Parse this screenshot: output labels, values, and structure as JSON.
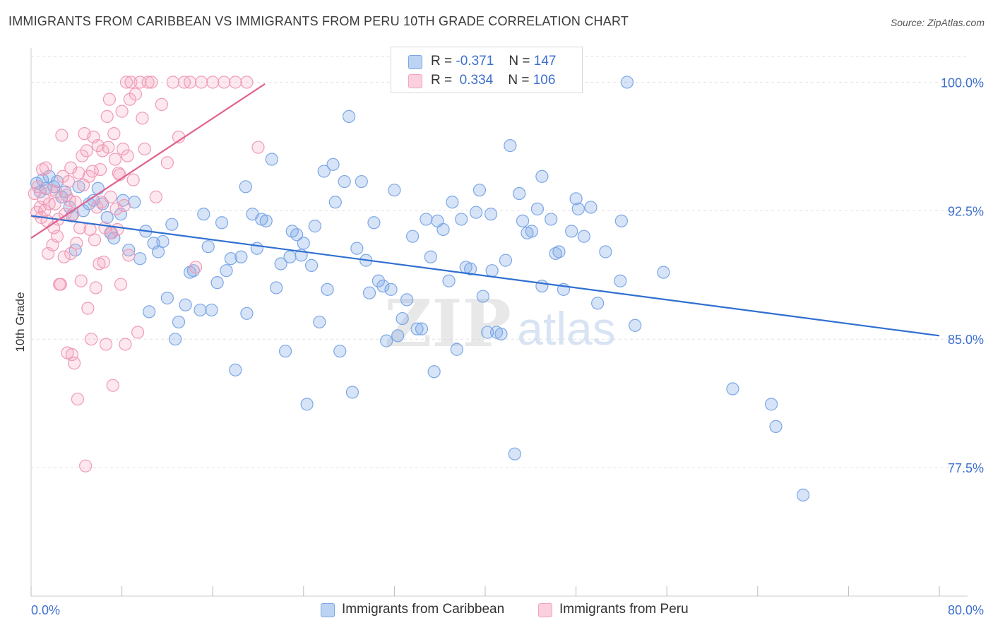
{
  "header": {
    "title": "IMMIGRANTS FROM CARIBBEAN VS IMMIGRANTS FROM PERU 10TH GRADE CORRELATION CHART",
    "source": "Source: ZipAtlas.com"
  },
  "legend": {
    "r_label": "R =",
    "n_label": "N =",
    "rows": [
      {
        "r": "-0.371",
        "n": "147"
      },
      {
        "r": "0.334",
        "n": "106"
      }
    ]
  },
  "watermark": {
    "zip": "ZIP",
    "atlas": "atlas"
  },
  "chart_data": {
    "type": "scatter",
    "title": "IMMIGRANTS FROM CARIBBEAN VS IMMIGRANTS FROM PERU 10TH GRADE CORRELATION CHART",
    "ylabel": "10th Grade",
    "xlabel": "",
    "x_ticks": [
      "0.0%",
      "80.0%"
    ],
    "y_ticks": [
      {
        "value": 100.0,
        "label": "100.0%"
      },
      {
        "value": 92.5,
        "label": "92.5%"
      },
      {
        "value": 85.0,
        "label": "85.0%"
      },
      {
        "value": 77.5,
        "label": "77.5%"
      }
    ],
    "xlim": [
      0,
      80
    ],
    "ylim": [
      70.0,
      101.5
    ],
    "grid": true,
    "legend_position": "bottom",
    "colors": {
      "caribbean": "#7ba7e6",
      "peru": "#f4a3bd",
      "caribbean_line": "#2f6fd1",
      "peru_line": "#e0628f",
      "axis_label": "#3d6fcf"
    },
    "series": [
      {
        "name": "Immigrants from Caribbean",
        "trend": {
          "x": [
            0,
            80
          ],
          "y": [
            92.2,
            85.2
          ]
        },
        "points": [
          [
            0.5,
            94.1
          ],
          [
            0.8,
            93.6
          ],
          [
            1.0,
            94.3
          ],
          [
            1.3,
            93.8
          ],
          [
            1.6,
            94.5
          ],
          [
            2.0,
            93.9
          ],
          [
            2.3,
            94.2
          ],
          [
            2.7,
            93.3
          ],
          [
            3.0,
            93.6
          ],
          [
            3.4,
            92.7
          ],
          [
            3.6,
            92.2
          ],
          [
            3.9,
            90.2
          ],
          [
            4.2,
            93.9
          ],
          [
            4.6,
            92.5
          ],
          [
            5.1,
            92.9
          ],
          [
            5.5,
            93.1
          ],
          [
            5.9,
            93.8
          ],
          [
            6.3,
            92.9
          ],
          [
            6.7,
            92.1
          ],
          [
            7.0,
            91.2
          ],
          [
            7.3,
            90.9
          ],
          [
            7.9,
            92.3
          ],
          [
            8.1,
            93.1
          ],
          [
            8.6,
            90.2
          ],
          [
            9.1,
            93.0
          ],
          [
            9.6,
            89.7
          ],
          [
            10.1,
            91.3
          ],
          [
            10.4,
            86.6
          ],
          [
            10.8,
            90.6
          ],
          [
            11.2,
            90.1
          ],
          [
            11.6,
            90.7
          ],
          [
            12.0,
            87.4
          ],
          [
            12.4,
            91.7
          ],
          [
            12.7,
            85.0
          ],
          [
            13.0,
            86.0
          ],
          [
            13.6,
            87.0
          ],
          [
            14.0,
            88.9
          ],
          [
            14.3,
            89.0
          ],
          [
            14.9,
            86.7
          ],
          [
            15.2,
            92.3
          ],
          [
            15.6,
            90.4
          ],
          [
            15.9,
            86.7
          ],
          [
            16.4,
            88.3
          ],
          [
            16.8,
            91.8
          ],
          [
            17.2,
            89.0
          ],
          [
            17.6,
            89.7
          ],
          [
            18.0,
            83.2
          ],
          [
            18.5,
            89.8
          ],
          [
            18.9,
            93.9
          ],
          [
            19.0,
            86.5
          ],
          [
            19.5,
            92.3
          ],
          [
            19.9,
            90.3
          ],
          [
            20.3,
            92.0
          ],
          [
            20.7,
            91.9
          ],
          [
            21.2,
            95.5
          ],
          [
            21.6,
            88.0
          ],
          [
            22.0,
            89.4
          ],
          [
            22.4,
            84.3
          ],
          [
            22.8,
            89.8
          ],
          [
            23.0,
            91.3
          ],
          [
            23.4,
            91.1
          ],
          [
            23.8,
            89.9
          ],
          [
            24.0,
            90.6
          ],
          [
            24.3,
            81.2
          ],
          [
            24.7,
            89.3
          ],
          [
            25.0,
            91.6
          ],
          [
            25.4,
            86.0
          ],
          [
            25.8,
            94.8
          ],
          [
            26.1,
            87.9
          ],
          [
            26.6,
            95.2
          ],
          [
            26.8,
            93.0
          ],
          [
            27.2,
            84.3
          ],
          [
            27.6,
            94.2
          ],
          [
            28.0,
            98.0
          ],
          [
            28.3,
            81.9
          ],
          [
            28.7,
            90.3
          ],
          [
            29.1,
            94.2
          ],
          [
            29.5,
            89.6
          ],
          [
            29.8,
            87.7
          ],
          [
            30.2,
            91.8
          ],
          [
            30.6,
            88.4
          ],
          [
            31.0,
            88.1
          ],
          [
            31.3,
            84.9
          ],
          [
            31.7,
            87.9
          ],
          [
            32.0,
            93.7
          ],
          [
            32.3,
            85.2
          ],
          [
            32.7,
            86.2
          ],
          [
            33.1,
            87.3
          ],
          [
            33.6,
            91.0
          ],
          [
            34.0,
            85.6
          ],
          [
            34.4,
            85.6
          ],
          [
            34.8,
            92.0
          ],
          [
            35.2,
            89.8
          ],
          [
            35.5,
            83.1
          ],
          [
            35.8,
            91.9
          ],
          [
            36.3,
            91.4
          ],
          [
            36.8,
            88.4
          ],
          [
            37.1,
            93.0
          ],
          [
            37.5,
            84.4
          ],
          [
            37.9,
            92.0
          ],
          [
            38.3,
            89.2
          ],
          [
            38.7,
            89.1
          ],
          [
            39.2,
            92.4
          ],
          [
            39.5,
            93.7
          ],
          [
            39.8,
            87.5
          ],
          [
            40.2,
            85.4
          ],
          [
            40.6,
            89.0
          ],
          [
            41.0,
            85.4
          ],
          [
            41.4,
            85.3
          ],
          [
            41.8,
            89.6
          ],
          [
            42.2,
            96.3
          ],
          [
            42.6,
            78.3
          ],
          [
            43.0,
            93.5
          ],
          [
            43.3,
            91.9
          ],
          [
            43.7,
            91.2
          ],
          [
            44.1,
            91.3
          ],
          [
            44.6,
            92.6
          ],
          [
            45.0,
            88.1
          ],
          [
            45.8,
            92.0
          ],
          [
            46.2,
            90.0
          ],
          [
            46.5,
            90.1
          ],
          [
            46.9,
            87.9
          ],
          [
            47.6,
            91.3
          ],
          [
            48.2,
            92.6
          ],
          [
            48.7,
            91.0
          ],
          [
            49.3,
            92.7
          ],
          [
            49.9,
            87.1
          ],
          [
            50.6,
            90.1
          ],
          [
            51.9,
            88.4
          ],
          [
            52.0,
            91.9
          ],
          [
            53.2,
            85.8
          ],
          [
            55.7,
            88.9
          ],
          [
            61.8,
            82.1
          ],
          [
            65.2,
            81.2
          ],
          [
            65.6,
            79.9
          ],
          [
            68.0,
            75.9
          ],
          [
            52.5,
            100.0
          ],
          [
            40.5,
            92.3
          ],
          [
            48.0,
            93.2
          ],
          [
            45.0,
            94.5
          ]
        ]
      },
      {
        "name": "Immigrants from Peru",
        "trend": {
          "x": [
            0,
            20.6
          ],
          "y": [
            90.9,
            99.9
          ]
        },
        "points": [
          [
            0.3,
            93.5
          ],
          [
            0.5,
            92.4
          ],
          [
            0.6,
            93.9
          ],
          [
            0.8,
            92.7
          ],
          [
            0.9,
            92.1
          ],
          [
            1.0,
            94.9
          ],
          [
            1.1,
            93.2
          ],
          [
            1.3,
            95.0
          ],
          [
            1.4,
            91.9
          ],
          [
            1.5,
            90.0
          ],
          [
            1.6,
            92.9
          ],
          [
            1.8,
            93.7
          ],
          [
            1.9,
            90.5
          ],
          [
            2.0,
            91.5
          ],
          [
            2.1,
            92.9
          ],
          [
            2.2,
            93.6
          ],
          [
            2.4,
            92.0
          ],
          [
            2.5,
            88.2
          ],
          [
            2.6,
            88.2
          ],
          [
            2.7,
            96.9
          ],
          [
            2.8,
            94.5
          ],
          [
            2.9,
            89.8
          ],
          [
            3.0,
            92.3
          ],
          [
            3.1,
            93.4
          ],
          [
            3.2,
            84.2
          ],
          [
            3.3,
            94.2
          ],
          [
            3.4,
            93.1
          ],
          [
            3.5,
            95.0
          ],
          [
            3.6,
            84.1
          ],
          [
            3.7,
            92.3
          ],
          [
            3.8,
            83.6
          ],
          [
            3.9,
            93.0
          ],
          [
            4.0,
            90.6
          ],
          [
            4.1,
            81.5
          ],
          [
            4.2,
            94.7
          ],
          [
            4.3,
            91.5
          ],
          [
            4.4,
            88.4
          ],
          [
            4.5,
            95.7
          ],
          [
            4.6,
            94.0
          ],
          [
            4.7,
            97.0
          ],
          [
            4.8,
            77.6
          ],
          [
            4.9,
            96.0
          ],
          [
            5.0,
            86.8
          ],
          [
            5.1,
            94.5
          ],
          [
            5.2,
            91.4
          ],
          [
            5.3,
            85.0
          ],
          [
            5.4,
            94.8
          ],
          [
            5.5,
            96.8
          ],
          [
            5.6,
            90.8
          ],
          [
            5.7,
            88.0
          ],
          [
            5.8,
            92.7
          ],
          [
            5.9,
            96.3
          ],
          [
            6.0,
            89.4
          ],
          [
            6.1,
            94.9
          ],
          [
            6.2,
            93.0
          ],
          [
            6.3,
            96.0
          ],
          [
            6.4,
            89.5
          ],
          [
            6.5,
            91.5
          ],
          [
            6.6,
            84.7
          ],
          [
            6.7,
            98.0
          ],
          [
            6.8,
            96.2
          ],
          [
            6.9,
            99.0
          ],
          [
            7.0,
            93.3
          ],
          [
            7.1,
            91.2
          ],
          [
            7.2,
            82.3
          ],
          [
            7.3,
            97.0
          ],
          [
            7.4,
            95.5
          ],
          [
            7.5,
            92.6
          ],
          [
            7.6,
            91.4
          ],
          [
            7.7,
            94.7
          ],
          [
            7.8,
            94.6
          ],
          [
            7.9,
            88.2
          ],
          [
            8.0,
            98.3
          ],
          [
            8.1,
            96.1
          ],
          [
            8.2,
            92.8
          ],
          [
            8.3,
            84.7
          ],
          [
            8.4,
            100.0
          ],
          [
            8.5,
            95.7
          ],
          [
            8.6,
            89.9
          ],
          [
            8.7,
            99.0
          ],
          [
            8.8,
            100.0
          ],
          [
            9.0,
            94.3
          ],
          [
            9.2,
            99.3
          ],
          [
            9.4,
            85.4
          ],
          [
            9.6,
            100.0
          ],
          [
            9.8,
            97.9
          ],
          [
            10.0,
            96.1
          ],
          [
            10.3,
            100.0
          ],
          [
            10.6,
            100.0
          ],
          [
            11.0,
            93.3
          ],
          [
            11.5,
            98.7
          ],
          [
            12.0,
            95.3
          ],
          [
            12.5,
            100.0
          ],
          [
            13.0,
            96.8
          ],
          [
            13.5,
            100.0
          ],
          [
            14.0,
            100.0
          ],
          [
            14.5,
            89.2
          ],
          [
            15.0,
            100.0
          ],
          [
            16.0,
            100.0
          ],
          [
            17.0,
            100.0
          ],
          [
            18.0,
            100.0
          ],
          [
            19.0,
            100.0
          ],
          [
            20.0,
            96.2
          ],
          [
            1.2,
            92.5
          ],
          [
            2.3,
            91.0
          ],
          [
            3.5,
            90.0
          ]
        ]
      }
    ]
  },
  "bottom_legend": [
    {
      "label": "Immigrants from Caribbean"
    },
    {
      "label": "Immigrants from Peru"
    }
  ]
}
